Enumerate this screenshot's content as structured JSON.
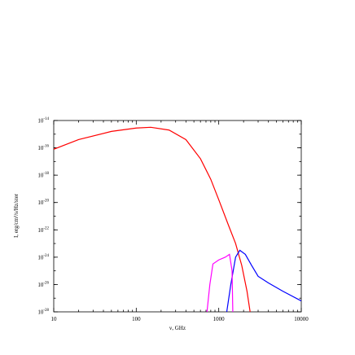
{
  "chart_data": {
    "type": "line",
    "xlabel": "ν, GHz",
    "ylabel": "I, erg/cm²/s/Hz/ster",
    "xscale": "log",
    "yscale": "log",
    "xlim": [
      10,
      10000
    ],
    "ylim": [
      1e-28,
      1e-14
    ],
    "xticks": [
      10,
      100,
      1000,
      10000
    ],
    "yticks": [
      {
        "value": 1e-14,
        "label": "10",
        "sup": "-14"
      },
      {
        "value": 1e-16,
        "label": "10",
        "sup": "-16"
      },
      {
        "value": 1e-18,
        "label": "10",
        "sup": "-18"
      },
      {
        "value": 1e-20,
        "label": "10",
        "sup": "-20"
      },
      {
        "value": 1e-22,
        "label": "10",
        "sup": "-22"
      },
      {
        "value": 1e-24,
        "label": "10",
        "sup": "-24"
      },
      {
        "value": 1e-26,
        "label": "10",
        "sup": "-26"
      },
      {
        "value": 1e-28,
        "label": "10",
        "sup": "-28"
      }
    ],
    "series": [
      {
        "color": "#ff0000",
        "x": [
          10,
          20,
          50,
          100,
          150,
          250,
          400,
          600,
          800,
          1000,
          1300,
          1600,
          1900,
          2200,
          2400
        ],
        "values": [
          7.9e-17,
          4e-16,
          1.6e-15,
          2.8e-15,
          3.2e-15,
          2e-15,
          4e-16,
          1.6e-17,
          5e-19,
          1.6e-20,
          2.5e-22,
          1e-23,
          2.5e-25,
          3.2e-27,
          1e-28
        ]
      },
      {
        "color": "#0000ff",
        "x": [
          1250,
          1400,
          1600,
          1800,
          2100,
          2500,
          3000,
          4000,
          6000,
          10000
        ],
        "values": [
          1e-28,
          1e-26,
          1e-24,
          3.2e-24,
          1.6e-24,
          2.5e-25,
          4e-26,
          1.3e-26,
          3.2e-27,
          6.3e-28
        ]
      },
      {
        "color": "#ff00ff",
        "x": [
          720,
          780,
          850,
          1000,
          1200,
          1350,
          1450,
          1480
        ],
        "values": [
          1e-28,
          1e-26,
          3.2e-25,
          6.3e-25,
          1e-24,
          1.6e-24,
          1e-25,
          1e-28
        ]
      }
    ]
  }
}
